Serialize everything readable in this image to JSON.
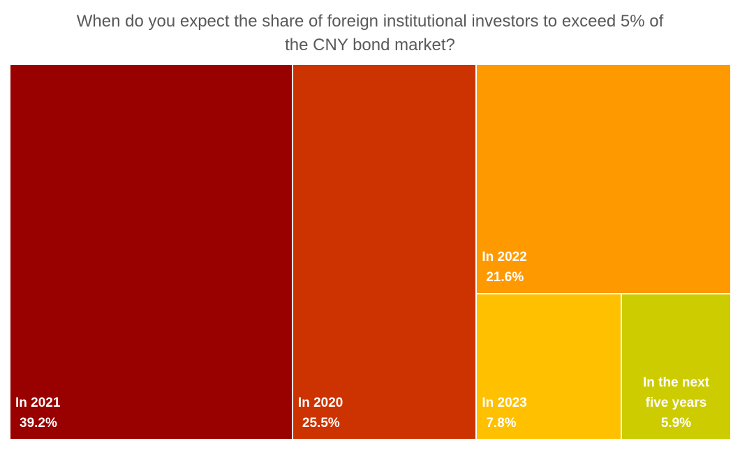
{
  "chart_data": {
    "type": "treemap",
    "title_lines": [
      "When do you expect the share of foreign institutional investors to exceed 5% of",
      "the CNY bond market?"
    ],
    "items": [
      {
        "category": "In 2021",
        "category_lines": [
          "In 2021"
        ],
        "value_label": "39.2%",
        "value": 39.2,
        "color": "#990000"
      },
      {
        "category": "In 2020",
        "category_lines": [
          "In 2020"
        ],
        "value_label": "25.5%",
        "value": 25.5,
        "color": "#CC3300"
      },
      {
        "category": "In 2022",
        "category_lines": [
          "In 2022"
        ],
        "value_label": "21.6%",
        "value": 21.6,
        "color": "#FF9900"
      },
      {
        "category": "In 2023",
        "category_lines": [
          "In 2023"
        ],
        "value_label": "7.8%",
        "value": 7.8,
        "color": "#FFC000"
      },
      {
        "category": "In the next five years",
        "category_lines": [
          "In the next",
          "five years"
        ],
        "value_label": "5.9%",
        "value": 5.9,
        "color": "#CCCC00"
      }
    ]
  }
}
